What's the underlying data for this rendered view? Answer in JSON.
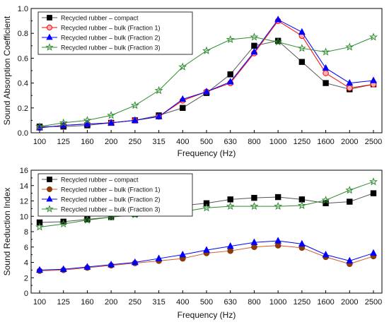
{
  "chart_data": [
    {
      "type": "line",
      "xlabel": "Frequency (Hz)",
      "ylabel": "Sound Absorption Coefficient",
      "categories": [
        "100",
        "125",
        "160",
        "200",
        "250",
        "315",
        "400",
        "500",
        "630",
        "800",
        "1000",
        "1250",
        "1600",
        "2000",
        "2500"
      ],
      "ylim": [
        0,
        1.0
      ],
      "yticks": [
        "0.0",
        "0.2",
        "0.4",
        "0.6",
        "0.8",
        "1.0"
      ],
      "ytick_values": [
        0,
        0.2,
        0.4,
        0.6,
        0.8,
        1.0
      ],
      "legend_position": "top-left",
      "grid": false,
      "series": [
        {
          "name": "Recycled rubber – compact",
          "color": "#000000",
          "marker": "square",
          "line_color": "#555555",
          "values": [
            0.05,
            0.05,
            0.06,
            0.08,
            0.1,
            0.14,
            0.2,
            0.32,
            0.47,
            0.7,
            0.74,
            0.57,
            0.4,
            0.35,
            0.39
          ]
        },
        {
          "name": "Recycled rubber – bulk (Fraction 1)",
          "color": "#ff0000",
          "marker": "circle",
          "line_color": "#ff0000",
          "values": [
            0.04,
            0.06,
            0.07,
            0.08,
            0.1,
            0.13,
            0.26,
            0.33,
            0.4,
            0.64,
            0.9,
            0.78,
            0.48,
            0.36,
            0.39
          ]
        },
        {
          "name": "Recycled rubber – bulk (Fraction 2)",
          "color": "#0000ff",
          "marker": "triangle",
          "line_color": "#0000ff",
          "values": [
            0.04,
            0.06,
            0.07,
            0.08,
            0.1,
            0.13,
            0.27,
            0.33,
            0.41,
            0.65,
            0.91,
            0.81,
            0.52,
            0.4,
            0.42
          ]
        },
        {
          "name": "Recycled rubber – bulk (Fraction 3)",
          "color": "#2e8b2e",
          "marker": "star",
          "line_color": "#2e8b2e",
          "values": [
            0.05,
            0.08,
            0.1,
            0.14,
            0.22,
            0.34,
            0.53,
            0.66,
            0.75,
            0.77,
            0.73,
            0.68,
            0.65,
            0.69,
            0.77
          ]
        }
      ]
    },
    {
      "type": "line",
      "xlabel": "Frequency (Hz)",
      "ylabel": "Sound Reduction Index",
      "categories": [
        "100",
        "125",
        "160",
        "200",
        "250",
        "315",
        "400",
        "500",
        "630",
        "800",
        "1000",
        "1250",
        "1600",
        "2000",
        "2500"
      ],
      "ylim": [
        0,
        16
      ],
      "yticks": [
        "0",
        "2",
        "4",
        "6",
        "8",
        "10",
        "12",
        "14",
        "16"
      ],
      "ytick_values": [
        0,
        2,
        4,
        6,
        8,
        10,
        12,
        14,
        16
      ],
      "legend_position": "top-left",
      "grid": false,
      "series": [
        {
          "name": "Recycled rubber – compact",
          "color": "#000000",
          "marker": "square",
          "line_color": "#555555",
          "values": [
            9.2,
            9.3,
            9.6,
            9.9,
            10.3,
            10.8,
            11.4,
            11.7,
            12.2,
            12.4,
            12.5,
            12.2,
            11.7,
            11.9,
            13.0
          ]
        },
        {
          "name": "Recycled rubber – bulk (Fraction 1)",
          "color": "#8b3a0a",
          "marker": "circle",
          "line_color": "#d25a2a",
          "values": [
            2.9,
            3.0,
            3.3,
            3.6,
            3.9,
            4.2,
            4.5,
            5.2,
            5.5,
            6.0,
            6.2,
            5.9,
            4.7,
            3.8,
            4.8
          ]
        },
        {
          "name": "Recycled rubber – bulk (Fraction 2)",
          "color": "#0000ff",
          "marker": "triangle",
          "line_color": "#0000ff",
          "values": [
            3.0,
            3.1,
            3.4,
            3.7,
            4.0,
            4.5,
            5.0,
            5.6,
            6.1,
            6.6,
            6.8,
            6.4,
            5.0,
            4.2,
            5.2
          ]
        },
        {
          "name": "Recycled rubber – bulk (Fraction 3)",
          "color": "#2e8b2e",
          "marker": "star",
          "line_color": "#2e8b2e",
          "values": [
            8.6,
            9.0,
            9.5,
            9.9,
            10.2,
            10.5,
            10.6,
            11.1,
            11.3,
            11.3,
            11.3,
            11.4,
            12.1,
            13.4,
            14.5
          ]
        }
      ]
    }
  ]
}
